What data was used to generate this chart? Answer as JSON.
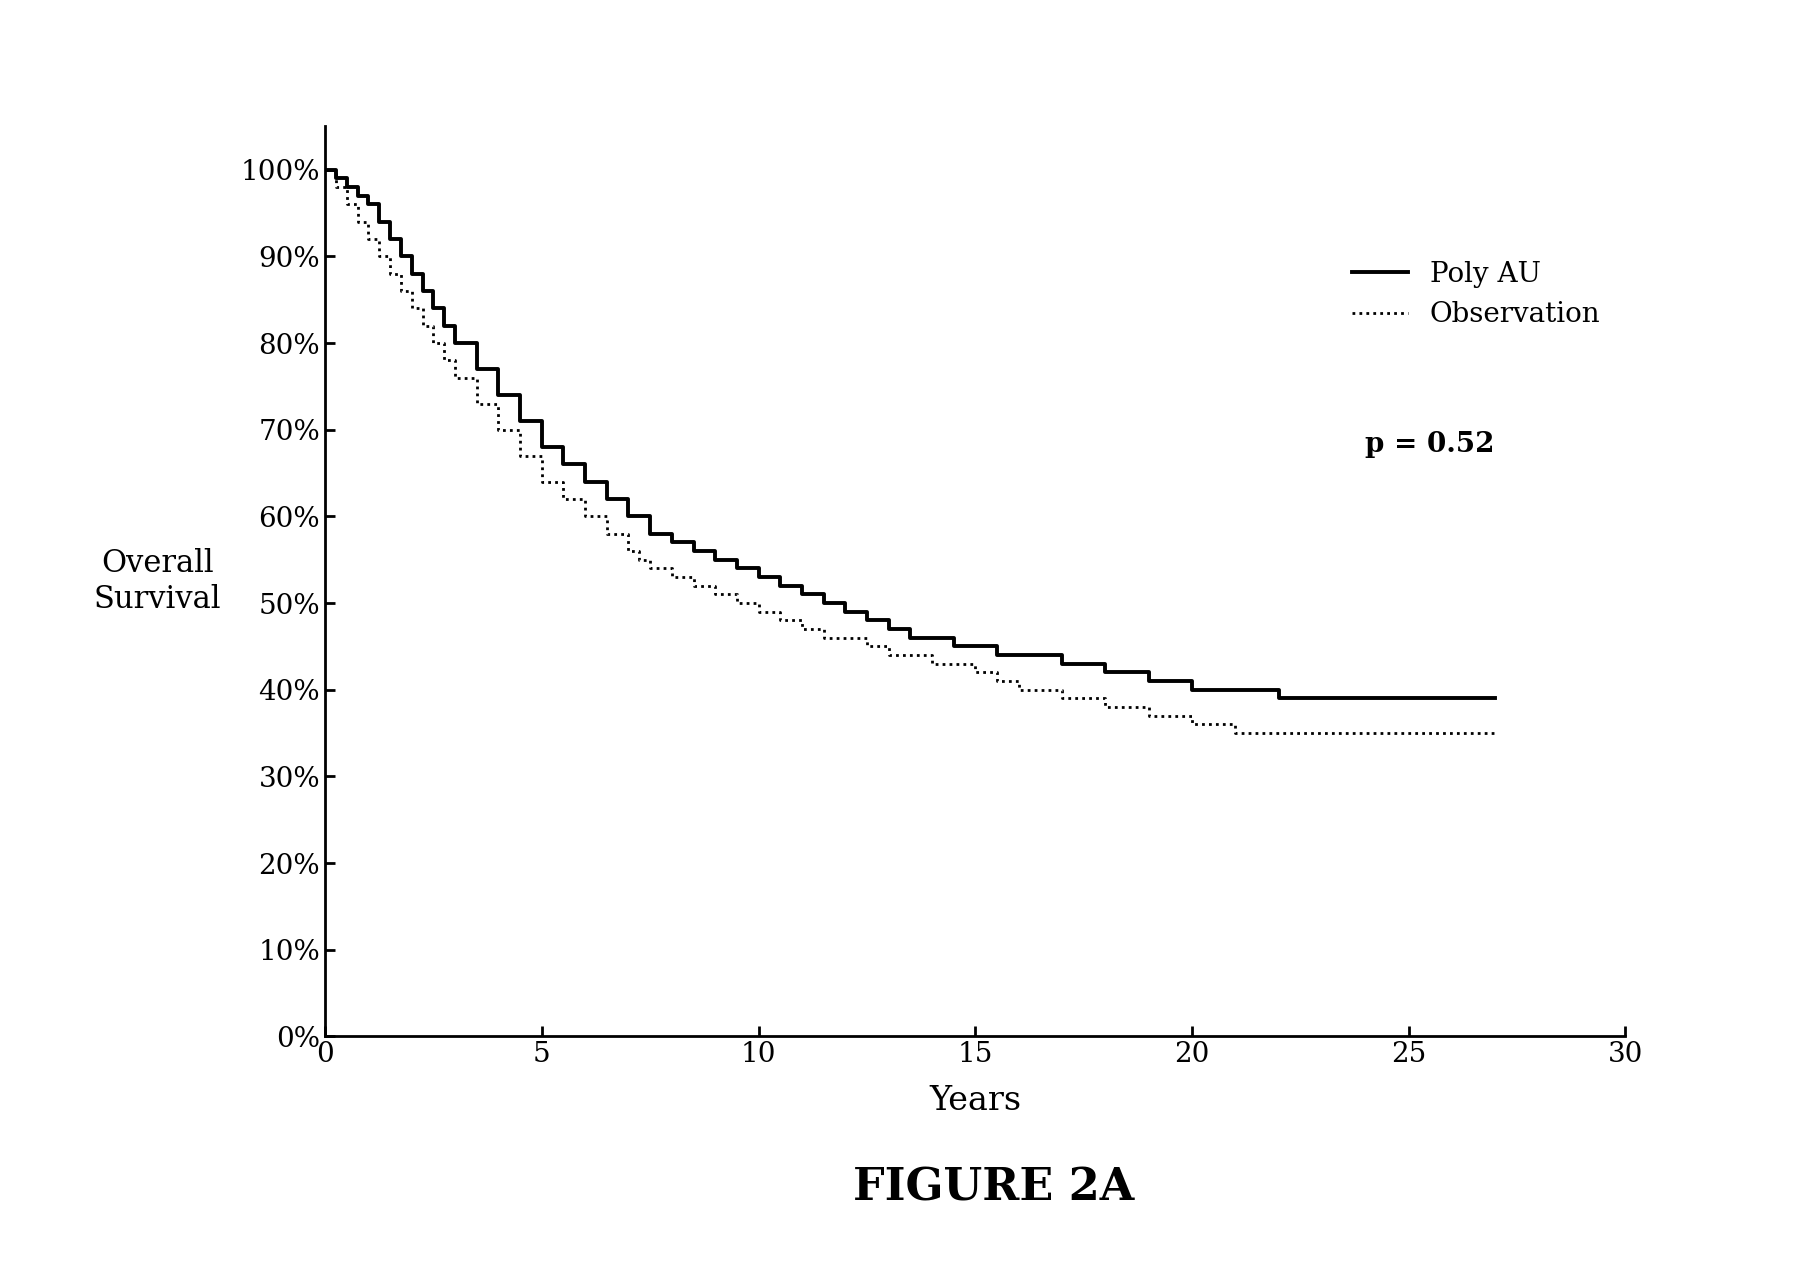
{
  "title": "FIGURE 2A",
  "ylabel": "Overall\nSurvival",
  "xlabel": "Years",
  "xlim": [
    0,
    30
  ],
  "ylim": [
    0.0,
    1.05
  ],
  "yticks": [
    0.0,
    0.1,
    0.2,
    0.3,
    0.4,
    0.5,
    0.6,
    0.7,
    0.8,
    0.9,
    1.0
  ],
  "ytick_labels": [
    "0%",
    "10%",
    "20%",
    "30%",
    "40%",
    "50%",
    "60%",
    "70%",
    "80%",
    "90%",
    "100%"
  ],
  "xticks": [
    0,
    5,
    10,
    15,
    20,
    25,
    30
  ],
  "p_value": "p = 0.52",
  "legend_entries": [
    "Poly AU",
    "Observation"
  ],
  "poly_au_x": [
    0,
    0.25,
    0.5,
    0.75,
    1.0,
    1.25,
    1.5,
    1.75,
    2.0,
    2.25,
    2.5,
    2.75,
    3.0,
    3.5,
    4.0,
    4.5,
    5.0,
    5.5,
    6.0,
    6.5,
    7.0,
    7.5,
    8.0,
    8.5,
    9.0,
    9.5,
    10.0,
    10.5,
    11.0,
    11.5,
    12.0,
    12.5,
    13.0,
    13.5,
    14.0,
    14.5,
    15.0,
    15.5,
    16.0,
    17.0,
    18.0,
    19.0,
    20.0,
    21.0,
    22.0,
    23.0,
    27.0
  ],
  "poly_au_y": [
    1.0,
    0.99,
    0.98,
    0.97,
    0.96,
    0.94,
    0.92,
    0.9,
    0.88,
    0.86,
    0.84,
    0.82,
    0.8,
    0.77,
    0.74,
    0.71,
    0.68,
    0.66,
    0.64,
    0.62,
    0.6,
    0.58,
    0.57,
    0.56,
    0.55,
    0.54,
    0.53,
    0.52,
    0.51,
    0.5,
    0.49,
    0.48,
    0.47,
    0.46,
    0.46,
    0.45,
    0.45,
    0.44,
    0.44,
    0.43,
    0.42,
    0.41,
    0.4,
    0.4,
    0.39,
    0.39,
    0.39
  ],
  "obs_x": [
    0,
    0.25,
    0.5,
    0.75,
    1.0,
    1.25,
    1.5,
    1.75,
    2.0,
    2.25,
    2.5,
    2.75,
    3.0,
    3.5,
    4.0,
    4.5,
    5.0,
    5.5,
    6.0,
    6.5,
    7.0,
    7.25,
    7.5,
    8.0,
    8.5,
    9.0,
    9.5,
    10.0,
    10.5,
    11.0,
    11.5,
    12.0,
    12.5,
    13.0,
    13.5,
    14.0,
    14.5,
    15.0,
    15.5,
    16.0,
    17.0,
    18.0,
    19.0,
    20.0,
    21.0,
    22.0,
    27.0
  ],
  "obs_y": [
    1.0,
    0.98,
    0.96,
    0.94,
    0.92,
    0.9,
    0.88,
    0.86,
    0.84,
    0.82,
    0.8,
    0.78,
    0.76,
    0.73,
    0.7,
    0.67,
    0.64,
    0.62,
    0.6,
    0.58,
    0.56,
    0.55,
    0.54,
    0.53,
    0.52,
    0.51,
    0.5,
    0.49,
    0.48,
    0.47,
    0.46,
    0.46,
    0.45,
    0.44,
    0.44,
    0.43,
    0.43,
    0.42,
    0.41,
    0.4,
    0.39,
    0.38,
    0.37,
    0.36,
    0.35,
    0.35,
    0.35
  ],
  "background_color": "#ffffff",
  "line_color": "#000000",
  "title_fontsize": 32,
  "label_fontsize": 22,
  "tick_fontsize": 20,
  "legend_fontsize": 20,
  "p_fontsize": 20
}
